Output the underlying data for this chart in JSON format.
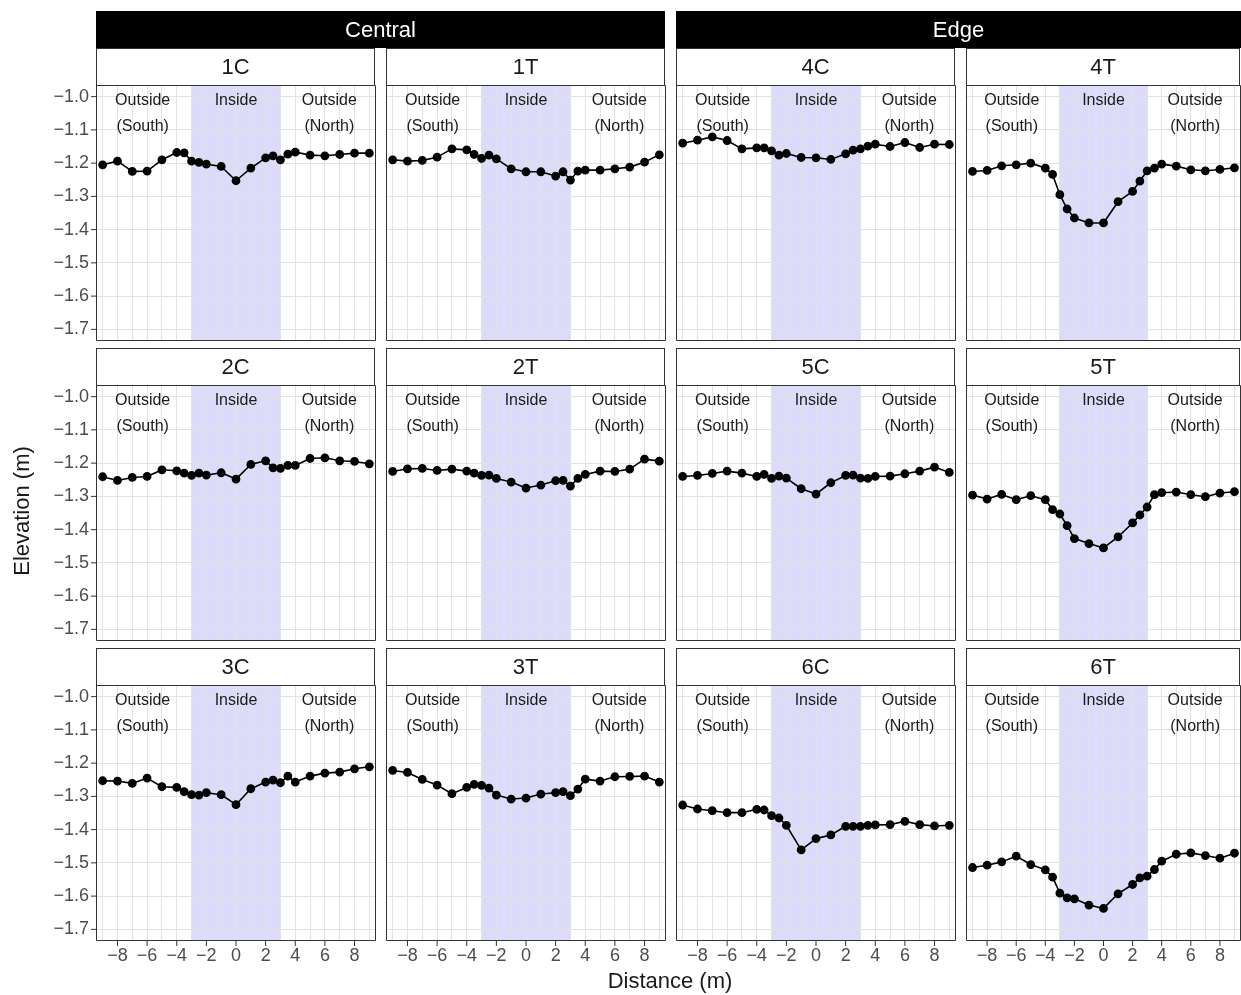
{
  "chart_data": [
    {
      "type": "other",
      "title": "Central"
    },
    {
      "type": "other",
      "title": "Edge"
    },
    {
      "type": "line",
      "title": "1C",
      "tick_labels": "y",
      "grid": true,
      "marker": "circle",
      "x": [
        -9,
        -8,
        -7,
        -6,
        -5,
        -4,
        -3.5,
        -3,
        -2.5,
        -2,
        -1,
        0,
        1,
        2,
        2.5,
        3,
        3.5,
        4,
        5,
        6,
        7,
        8,
        9
      ],
      "xlim": [
        -9.45,
        9.45
      ],
      "ylim": [
        -1.735,
        -0.965
      ],
      "xticks": [
        {
          "value": -9,
          "label": null
        },
        {
          "value": -8,
          "label": null
        },
        {
          "value": -7,
          "label": null
        },
        {
          "value": -6,
          "label": null
        },
        {
          "value": -5,
          "label": null
        },
        {
          "value": -4,
          "label": null
        },
        {
          "value": -3,
          "label": null
        },
        {
          "value": -2,
          "label": null
        },
        {
          "value": -1,
          "label": null
        },
        {
          "value": 0,
          "label": null
        },
        {
          "value": 1,
          "label": null
        },
        {
          "value": 2,
          "label": null
        },
        {
          "value": 3,
          "label": null
        },
        {
          "value": 4,
          "label": null
        },
        {
          "value": 5,
          "label": null
        },
        {
          "value": 6,
          "label": null
        },
        {
          "value": 7,
          "label": null
        },
        {
          "value": 8,
          "label": null
        },
        {
          "value": 9,
          "label": null
        }
      ],
      "yticks": [
        {
          "value": -1.0,
          "label": "−1.0"
        },
        {
          "value": -1.1,
          "label": "−1.1"
        },
        {
          "value": -1.2,
          "label": "−1.2"
        },
        {
          "value": -1.3,
          "label": "−1.3"
        },
        {
          "value": -1.4,
          "label": "−1.4"
        },
        {
          "value": -1.5,
          "label": "−1.5"
        },
        {
          "value": -1.6,
          "label": "−1.6"
        },
        {
          "value": -1.7,
          "label": "−1.7"
        }
      ],
      "bands": [
        {
          "axis": "x",
          "from": -3,
          "to": 3,
          "color": "#dcdcfa"
        }
      ],
      "annotations": [
        "Outside\n(South)",
        "Inside",
        "Outside\n(North)"
      ],
      "series": [
        {
          "color": "#000000",
          "values": [
            -1.205,
            -1.194,
            -1.225,
            -1.224,
            -1.19,
            -1.168,
            -1.169,
            -1.194,
            -1.198,
            -1.203,
            -1.21,
            -1.253,
            -1.215,
            -1.184,
            -1.178,
            -1.19,
            -1.173,
            -1.167,
            -1.176,
            -1.178,
            -1.174,
            -1.17,
            -1.17
          ]
        }
      ]
    },
    {
      "type": "line",
      "title": "1T",
      "tick_labels": false,
      "grid": true,
      "marker": "circle",
      "x": [
        -9,
        -8,
        -7,
        -6,
        -5,
        -4,
        -3.5,
        -3,
        -2.5,
        -2,
        -1,
        0,
        1,
        2,
        2.5,
        3,
        3.5,
        4,
        5,
        6,
        7,
        8,
        9
      ],
      "xlim": [
        -9.45,
        9.45
      ],
      "ylim": [
        -1.735,
        -0.965
      ],
      "xticks": [
        {
          "value": -9,
          "label": null
        },
        {
          "value": -8,
          "label": null
        },
        {
          "value": -7,
          "label": null
        },
        {
          "value": -6,
          "label": null
        },
        {
          "value": -5,
          "label": null
        },
        {
          "value": -4,
          "label": null
        },
        {
          "value": -3,
          "label": null
        },
        {
          "value": -2,
          "label": null
        },
        {
          "value": -1,
          "label": null
        },
        {
          "value": 0,
          "label": null
        },
        {
          "value": 1,
          "label": null
        },
        {
          "value": 2,
          "label": null
        },
        {
          "value": 3,
          "label": null
        },
        {
          "value": 4,
          "label": null
        },
        {
          "value": 5,
          "label": null
        },
        {
          "value": 6,
          "label": null
        },
        {
          "value": 7,
          "label": null
        },
        {
          "value": 8,
          "label": null
        },
        {
          "value": 9,
          "label": null
        }
      ],
      "yticks": [
        {
          "value": -1.0,
          "label": null
        },
        {
          "value": -1.1,
          "label": null
        },
        {
          "value": -1.2,
          "label": null
        },
        {
          "value": -1.3,
          "label": null
        },
        {
          "value": -1.4,
          "label": null
        },
        {
          "value": -1.5,
          "label": null
        },
        {
          "value": -1.6,
          "label": null
        },
        {
          "value": -1.7,
          "label": null
        }
      ],
      "bands": [
        {
          "axis": "x",
          "from": -3,
          "to": 3,
          "color": "#dcdcfa"
        }
      ],
      "annotations": [
        "Outside\n(South)",
        "Inside",
        "Outside\n(North)"
      ],
      "series": [
        {
          "color": "#000000",
          "values": [
            -1.19,
            -1.194,
            -1.192,
            -1.182,
            -1.157,
            -1.16,
            -1.174,
            -1.186,
            -1.176,
            -1.187,
            -1.217,
            -1.226,
            -1.226,
            -1.239,
            -1.226,
            -1.251,
            -1.224,
            -1.221,
            -1.221,
            -1.217,
            -1.212,
            -1.197,
            -1.175
          ]
        }
      ]
    },
    {
      "type": "line",
      "title": "4C",
      "tick_labels": false,
      "grid": true,
      "marker": "circle",
      "x": [
        -9,
        -8,
        -7,
        -6,
        -5,
        -4,
        -3.5,
        -3,
        -2.5,
        -2,
        -1,
        0,
        1,
        2,
        2.5,
        3,
        3.5,
        4,
        5,
        6,
        7,
        8,
        9
      ],
      "xlim": [
        -9.45,
        9.45
      ],
      "ylim": [
        -1.735,
        -0.965
      ],
      "xticks": [
        {
          "value": -9,
          "label": null
        },
        {
          "value": -8,
          "label": null
        },
        {
          "value": -7,
          "label": null
        },
        {
          "value": -6,
          "label": null
        },
        {
          "value": -5,
          "label": null
        },
        {
          "value": -4,
          "label": null
        },
        {
          "value": -3,
          "label": null
        },
        {
          "value": -2,
          "label": null
        },
        {
          "value": -1,
          "label": null
        },
        {
          "value": 0,
          "label": null
        },
        {
          "value": 1,
          "label": null
        },
        {
          "value": 2,
          "label": null
        },
        {
          "value": 3,
          "label": null
        },
        {
          "value": 4,
          "label": null
        },
        {
          "value": 5,
          "label": null
        },
        {
          "value": 6,
          "label": null
        },
        {
          "value": 7,
          "label": null
        },
        {
          "value": 8,
          "label": null
        },
        {
          "value": 9,
          "label": null
        }
      ],
      "yticks": [
        {
          "value": -1.0,
          "label": null
        },
        {
          "value": -1.1,
          "label": null
        },
        {
          "value": -1.2,
          "label": null
        },
        {
          "value": -1.3,
          "label": null
        },
        {
          "value": -1.4,
          "label": null
        },
        {
          "value": -1.5,
          "label": null
        },
        {
          "value": -1.6,
          "label": null
        },
        {
          "value": -1.7,
          "label": null
        }
      ],
      "bands": [
        {
          "axis": "x",
          "from": -3,
          "to": 3,
          "color": "#dcdcfa"
        }
      ],
      "annotations": [
        "Outside\n(South)",
        "Inside",
        "Outside\n(North)"
      ],
      "series": [
        {
          "color": "#000000",
          "values": [
            -1.14,
            -1.131,
            -1.121,
            -1.132,
            -1.157,
            -1.154,
            -1.154,
            -1.163,
            -1.176,
            -1.171,
            -1.183,
            -1.184,
            -1.189,
            -1.172,
            -1.161,
            -1.157,
            -1.149,
            -1.143,
            -1.15,
            -1.138,
            -1.153,
            -1.143,
            -1.144
          ]
        }
      ]
    },
    {
      "type": "line",
      "title": "4T",
      "tick_labels": false,
      "grid": true,
      "marker": "circle",
      "x": [
        -9,
        -8,
        -7,
        -6,
        -5,
        -4,
        -3.5,
        -3,
        -2.5,
        -2,
        -1,
        0,
        1,
        2,
        2.5,
        3,
        3.5,
        4,
        5,
        6,
        7,
        8,
        9
      ],
      "xlim": [
        -9.45,
        9.45
      ],
      "ylim": [
        -1.735,
        -0.965
      ],
      "xticks": [
        {
          "value": -9,
          "label": null
        },
        {
          "value": -8,
          "label": null
        },
        {
          "value": -7,
          "label": null
        },
        {
          "value": -6,
          "label": null
        },
        {
          "value": -5,
          "label": null
        },
        {
          "value": -4,
          "label": null
        },
        {
          "value": -3,
          "label": null
        },
        {
          "value": -2,
          "label": null
        },
        {
          "value": -1,
          "label": null
        },
        {
          "value": 0,
          "label": null
        },
        {
          "value": 1,
          "label": null
        },
        {
          "value": 2,
          "label": null
        },
        {
          "value": 3,
          "label": null
        },
        {
          "value": 4,
          "label": null
        },
        {
          "value": 5,
          "label": null
        },
        {
          "value": 6,
          "label": null
        },
        {
          "value": 7,
          "label": null
        },
        {
          "value": 8,
          "label": null
        },
        {
          "value": 9,
          "label": null
        }
      ],
      "yticks": [
        {
          "value": -1.0,
          "label": null
        },
        {
          "value": -1.1,
          "label": null
        },
        {
          "value": -1.2,
          "label": null
        },
        {
          "value": -1.3,
          "label": null
        },
        {
          "value": -1.4,
          "label": null
        },
        {
          "value": -1.5,
          "label": null
        },
        {
          "value": -1.6,
          "label": null
        },
        {
          "value": -1.7,
          "label": null
        }
      ],
      "bands": [
        {
          "axis": "x",
          "from": -3,
          "to": 3,
          "color": "#dcdcfa"
        }
      ],
      "annotations": [
        "Outside\n(South)",
        "Inside",
        "Outside\n(North)"
      ],
      "series": [
        {
          "color": "#000000",
          "values": [
            -1.225,
            -1.222,
            -1.208,
            -1.205,
            -1.2,
            -1.215,
            -1.234,
            -1.295,
            -1.338,
            -1.365,
            -1.38,
            -1.38,
            -1.316,
            -1.285,
            -1.254,
            -1.223,
            -1.215,
            -1.203,
            -1.209,
            -1.22,
            -1.223,
            -1.219,
            -1.214
          ]
        }
      ]
    },
    {
      "type": "line",
      "title": "2C",
      "ylabel": "Elevation (m)",
      "tick_labels": "y",
      "grid": true,
      "marker": "circle",
      "x": [
        -9,
        -8,
        -7,
        -6,
        -5,
        -4,
        -3.5,
        -3,
        -2.5,
        -2,
        -1,
        0,
        1,
        2,
        2.5,
        3,
        3.5,
        4,
        5,
        6,
        7,
        8,
        9
      ],
      "xlim": [
        -9.45,
        9.45
      ],
      "ylim": [
        -1.735,
        -0.965
      ],
      "xticks": [
        {
          "value": -9,
          "label": null
        },
        {
          "value": -8,
          "label": null
        },
        {
          "value": -7,
          "label": null
        },
        {
          "value": -6,
          "label": null
        },
        {
          "value": -5,
          "label": null
        },
        {
          "value": -4,
          "label": null
        },
        {
          "value": -3,
          "label": null
        },
        {
          "value": -2,
          "label": null
        },
        {
          "value": -1,
          "label": null
        },
        {
          "value": 0,
          "label": null
        },
        {
          "value": 1,
          "label": null
        },
        {
          "value": 2,
          "label": null
        },
        {
          "value": 3,
          "label": null
        },
        {
          "value": 4,
          "label": null
        },
        {
          "value": 5,
          "label": null
        },
        {
          "value": 6,
          "label": null
        },
        {
          "value": 7,
          "label": null
        },
        {
          "value": 8,
          "label": null
        },
        {
          "value": 9,
          "label": null
        }
      ],
      "yticks": [
        {
          "value": -1.0,
          "label": "−1.0"
        },
        {
          "value": -1.1,
          "label": "−1.1"
        },
        {
          "value": -1.2,
          "label": "−1.2"
        },
        {
          "value": -1.3,
          "label": "−1.3"
        },
        {
          "value": -1.4,
          "label": "−1.4"
        },
        {
          "value": -1.5,
          "label": "−1.5"
        },
        {
          "value": -1.6,
          "label": "−1.6"
        },
        {
          "value": -1.7,
          "label": "−1.7"
        }
      ],
      "bands": [
        {
          "axis": "x",
          "from": -3,
          "to": 3,
          "color": "#dcdcfa"
        }
      ],
      "annotations": [
        "Outside\n(South)",
        "Inside",
        "Outside\n(North)"
      ],
      "series": [
        {
          "color": "#000000",
          "values": [
            -1.241,
            -1.252,
            -1.243,
            -1.24,
            -1.22,
            -1.223,
            -1.23,
            -1.237,
            -1.23,
            -1.236,
            -1.229,
            -1.248,
            -1.204,
            -1.193,
            -1.214,
            -1.216,
            -1.207,
            -1.207,
            -1.186,
            -1.184,
            -1.193,
            -1.195,
            -1.202
          ]
        }
      ]
    },
    {
      "type": "line",
      "title": "2T",
      "tick_labels": false,
      "grid": true,
      "marker": "circle",
      "x": [
        -9,
        -8,
        -7,
        -6,
        -5,
        -4,
        -3.5,
        -3,
        -2.5,
        -2,
        -1,
        0,
        1,
        2,
        2.5,
        3,
        3.5,
        4,
        5,
        6,
        7,
        8,
        9
      ],
      "xlim": [
        -9.45,
        9.45
      ],
      "ylim": [
        -1.735,
        -0.965
      ],
      "xticks": [
        {
          "value": -9,
          "label": null
        },
        {
          "value": -8,
          "label": null
        },
        {
          "value": -7,
          "label": null
        },
        {
          "value": -6,
          "label": null
        },
        {
          "value": -5,
          "label": null
        },
        {
          "value": -4,
          "label": null
        },
        {
          "value": -3,
          "label": null
        },
        {
          "value": -2,
          "label": null
        },
        {
          "value": -1,
          "label": null
        },
        {
          "value": 0,
          "label": null
        },
        {
          "value": 1,
          "label": null
        },
        {
          "value": 2,
          "label": null
        },
        {
          "value": 3,
          "label": null
        },
        {
          "value": 4,
          "label": null
        },
        {
          "value": 5,
          "label": null
        },
        {
          "value": 6,
          "label": null
        },
        {
          "value": 7,
          "label": null
        },
        {
          "value": 8,
          "label": null
        },
        {
          "value": 9,
          "label": null
        }
      ],
      "yticks": [
        {
          "value": -1.0,
          "label": null
        },
        {
          "value": -1.1,
          "label": null
        },
        {
          "value": -1.2,
          "label": null
        },
        {
          "value": -1.3,
          "label": null
        },
        {
          "value": -1.4,
          "label": null
        },
        {
          "value": -1.5,
          "label": null
        },
        {
          "value": -1.6,
          "label": null
        },
        {
          "value": -1.7,
          "label": null
        }
      ],
      "bands": [
        {
          "axis": "x",
          "from": -3,
          "to": 3,
          "color": "#dcdcfa"
        }
      ],
      "annotations": [
        "Outside\n(South)",
        "Inside",
        "Outside\n(North)"
      ],
      "series": [
        {
          "color": "#000000",
          "values": [
            -1.225,
            -1.217,
            -1.216,
            -1.222,
            -1.218,
            -1.224,
            -1.23,
            -1.237,
            -1.236,
            -1.246,
            -1.257,
            -1.275,
            -1.266,
            -1.253,
            -1.252,
            -1.269,
            -1.246,
            -1.234,
            -1.224,
            -1.225,
            -1.218,
            -1.188,
            -1.194
          ]
        }
      ]
    },
    {
      "type": "line",
      "title": "5C",
      "tick_labels": false,
      "grid": true,
      "marker": "circle",
      "x": [
        -9,
        -8,
        -7,
        -6,
        -5,
        -4,
        -3.5,
        -3,
        -2.5,
        -2,
        -1,
        0,
        1,
        2,
        2.5,
        3,
        3.5,
        4,
        5,
        6,
        7,
        8,
        9
      ],
      "xlim": [
        -9.45,
        9.45
      ],
      "ylim": [
        -1.735,
        -0.965
      ],
      "xticks": [
        {
          "value": -9,
          "label": null
        },
        {
          "value": -8,
          "label": null
        },
        {
          "value": -7,
          "label": null
        },
        {
          "value": -6,
          "label": null
        },
        {
          "value": -5,
          "label": null
        },
        {
          "value": -4,
          "label": null
        },
        {
          "value": -3,
          "label": null
        },
        {
          "value": -2,
          "label": null
        },
        {
          "value": -1,
          "label": null
        },
        {
          "value": 0,
          "label": null
        },
        {
          "value": 1,
          "label": null
        },
        {
          "value": 2,
          "label": null
        },
        {
          "value": 3,
          "label": null
        },
        {
          "value": 4,
          "label": null
        },
        {
          "value": 5,
          "label": null
        },
        {
          "value": 6,
          "label": null
        },
        {
          "value": 7,
          "label": null
        },
        {
          "value": 8,
          "label": null
        },
        {
          "value": 9,
          "label": null
        }
      ],
      "yticks": [
        {
          "value": -1.0,
          "label": null
        },
        {
          "value": -1.1,
          "label": null
        },
        {
          "value": -1.2,
          "label": null
        },
        {
          "value": -1.3,
          "label": null
        },
        {
          "value": -1.4,
          "label": null
        },
        {
          "value": -1.5,
          "label": null
        },
        {
          "value": -1.6,
          "label": null
        },
        {
          "value": -1.7,
          "label": null
        }
      ],
      "bands": [
        {
          "axis": "x",
          "from": -3,
          "to": 3,
          "color": "#dcdcfa"
        }
      ],
      "annotations": [
        "Outside\n(South)",
        "Inside",
        "Outside\n(North)"
      ],
      "series": [
        {
          "color": "#000000",
          "values": [
            -1.24,
            -1.237,
            -1.231,
            -1.224,
            -1.23,
            -1.24,
            -1.234,
            -1.246,
            -1.239,
            -1.245,
            -1.277,
            -1.293,
            -1.259,
            -1.237,
            -1.236,
            -1.245,
            -1.246,
            -1.24,
            -1.239,
            -1.232,
            -1.224,
            -1.212,
            -1.228
          ]
        }
      ]
    },
    {
      "type": "line",
      "title": "5T",
      "tick_labels": false,
      "grid": true,
      "marker": "circle",
      "x": [
        -9,
        -8,
        -7,
        -6,
        -5,
        -4,
        -3.5,
        -3,
        -2.5,
        -2,
        -1,
        0,
        1,
        2,
        2.5,
        3,
        3.5,
        4,
        5,
        6,
        7,
        8,
        9
      ],
      "xlim": [
        -9.45,
        9.45
      ],
      "ylim": [
        -1.735,
        -0.965
      ],
      "xticks": [
        {
          "value": -9,
          "label": null
        },
        {
          "value": -8,
          "label": null
        },
        {
          "value": -7,
          "label": null
        },
        {
          "value": -6,
          "label": null
        },
        {
          "value": -5,
          "label": null
        },
        {
          "value": -4,
          "label": null
        },
        {
          "value": -3,
          "label": null
        },
        {
          "value": -2,
          "label": null
        },
        {
          "value": -1,
          "label": null
        },
        {
          "value": 0,
          "label": null
        },
        {
          "value": 1,
          "label": null
        },
        {
          "value": 2,
          "label": null
        },
        {
          "value": 3,
          "label": null
        },
        {
          "value": 4,
          "label": null
        },
        {
          "value": 5,
          "label": null
        },
        {
          "value": 6,
          "label": null
        },
        {
          "value": 7,
          "label": null
        },
        {
          "value": 8,
          "label": null
        },
        {
          "value": 9,
          "label": null
        }
      ],
      "yticks": [
        {
          "value": -1.0,
          "label": null
        },
        {
          "value": -1.1,
          "label": null
        },
        {
          "value": -1.2,
          "label": null
        },
        {
          "value": -1.3,
          "label": null
        },
        {
          "value": -1.4,
          "label": null
        },
        {
          "value": -1.5,
          "label": null
        },
        {
          "value": -1.6,
          "label": null
        },
        {
          "value": -1.7,
          "label": null
        }
      ],
      "bands": [
        {
          "axis": "x",
          "from": -3,
          "to": 3,
          "color": "#dcdcfa"
        }
      ],
      "annotations": [
        "Outside\n(South)",
        "Inside",
        "Outside\n(North)"
      ],
      "series": [
        {
          "color": "#000000",
          "values": [
            -1.296,
            -1.308,
            -1.294,
            -1.31,
            -1.298,
            -1.31,
            -1.34,
            -1.353,
            -1.388,
            -1.427,
            -1.442,
            -1.455,
            -1.422,
            -1.38,
            -1.356,
            -1.332,
            -1.295,
            -1.289,
            -1.287,
            -1.295,
            -1.301,
            -1.29,
            -1.286
          ]
        }
      ]
    },
    {
      "type": "line",
      "title": "3C",
      "grid": true,
      "marker": "circle",
      "x": [
        -9,
        -8,
        -7,
        -6,
        -5,
        -4,
        -3.5,
        -3,
        -2.5,
        -2,
        -1,
        0,
        1,
        2,
        2.5,
        3,
        3.5,
        4,
        5,
        6,
        7,
        8,
        9
      ],
      "xlim": [
        -9.45,
        9.45
      ],
      "ylim": [
        -1.735,
        -0.965
      ],
      "xticks": [
        {
          "value": -9,
          "label": null
        },
        {
          "value": -8,
          "label": "−8"
        },
        {
          "value": -7,
          "label": null
        },
        {
          "value": -6,
          "label": "−6"
        },
        {
          "value": -5,
          "label": null
        },
        {
          "value": -4,
          "label": "−4"
        },
        {
          "value": -3,
          "label": null
        },
        {
          "value": -2,
          "label": "−2"
        },
        {
          "value": -1,
          "label": null
        },
        0,
        {
          "value": 1,
          "label": null
        },
        2,
        {
          "value": 3,
          "label": null
        },
        4,
        {
          "value": 5,
          "label": null
        },
        6,
        {
          "value": 7,
          "label": null
        },
        8,
        {
          "value": 9,
          "label": null
        }
      ],
      "yticks": [
        {
          "value": -1.0,
          "label": "−1.0"
        },
        {
          "value": -1.1,
          "label": "−1.1"
        },
        {
          "value": -1.2,
          "label": "−1.2"
        },
        {
          "value": -1.3,
          "label": "−1.3"
        },
        {
          "value": -1.4,
          "label": "−1.4"
        },
        {
          "value": -1.5,
          "label": "−1.5"
        },
        {
          "value": -1.6,
          "label": "−1.6"
        },
        {
          "value": -1.7,
          "label": "−1.7"
        }
      ],
      "bands": [
        {
          "axis": "x",
          "from": -3,
          "to": 3,
          "color": "#dcdcfa"
        }
      ],
      "annotations": [
        "Outside\n(South)",
        "Inside",
        "Outside\n(North)"
      ],
      "series": [
        {
          "color": "#000000",
          "values": [
            -1.253,
            -1.254,
            -1.261,
            -1.245,
            -1.271,
            -1.273,
            -1.286,
            -1.295,
            -1.296,
            -1.289,
            -1.295,
            -1.325,
            -1.277,
            -1.257,
            -1.251,
            -1.259,
            -1.239,
            -1.257,
            -1.239,
            -1.23,
            -1.227,
            -1.217,
            -1.211
          ]
        }
      ]
    },
    {
      "type": "line",
      "title": "3T",
      "xlabel": "Distance (m)",
      "tick_labels": "x",
      "grid": true,
      "marker": "circle",
      "x": [
        -9,
        -8,
        -7,
        -6,
        -5,
        -4,
        -3.5,
        -3,
        -2.5,
        -2,
        -1,
        0,
        1,
        2,
        2.5,
        3,
        3.5,
        4,
        5,
        6,
        7,
        8,
        9
      ],
      "xlim": [
        -9.45,
        9.45
      ],
      "ylim": [
        -1.735,
        -0.965
      ],
      "xticks": [
        {
          "value": -9,
          "label": null
        },
        {
          "value": -8,
          "label": "−8"
        },
        {
          "value": -7,
          "label": null
        },
        {
          "value": -6,
          "label": "−6"
        },
        {
          "value": -5,
          "label": null
        },
        {
          "value": -4,
          "label": "−4"
        },
        {
          "value": -3,
          "label": null
        },
        {
          "value": -2,
          "label": "−2"
        },
        {
          "value": -1,
          "label": null
        },
        0,
        {
          "value": 1,
          "label": null
        },
        2,
        {
          "value": 3,
          "label": null
        },
        4,
        {
          "value": 5,
          "label": null
        },
        6,
        {
          "value": 7,
          "label": null
        },
        8,
        {
          "value": 9,
          "label": null
        }
      ],
      "yticks": [
        {
          "value": -1.0,
          "label": null
        },
        {
          "value": -1.1,
          "label": null
        },
        {
          "value": -1.2,
          "label": null
        },
        {
          "value": -1.3,
          "label": null
        },
        {
          "value": -1.4,
          "label": null
        },
        {
          "value": -1.5,
          "label": null
        },
        {
          "value": -1.6,
          "label": null
        },
        {
          "value": -1.7,
          "label": null
        }
      ],
      "bands": [
        {
          "axis": "x",
          "from": -3,
          "to": 3,
          "color": "#dcdcfa"
        }
      ],
      "annotations": [
        "Outside\n(South)",
        "Inside",
        "Outside\n(North)"
      ],
      "series": [
        {
          "color": "#000000",
          "values": [
            -1.222,
            -1.228,
            -1.249,
            -1.266,
            -1.292,
            -1.273,
            -1.264,
            -1.267,
            -1.275,
            -1.296,
            -1.308,
            -1.305,
            -1.293,
            -1.289,
            -1.286,
            -1.298,
            -1.278,
            -1.248,
            -1.254,
            -1.241,
            -1.24,
            -1.239,
            -1.257
          ]
        }
      ]
    },
    {
      "type": "line",
      "title": "6C",
      "tick_labels": "x",
      "grid": true,
      "marker": "circle",
      "x": [
        -9,
        -8,
        -7,
        -6,
        -5,
        -4,
        -3.5,
        -3,
        -2.5,
        -2,
        -1,
        0,
        1,
        2,
        2.5,
        3,
        3.5,
        4,
        5,
        6,
        7,
        8,
        9
      ],
      "xlim": [
        -9.45,
        9.45
      ],
      "ylim": [
        -1.735,
        -0.965
      ],
      "xticks": [
        {
          "value": -9,
          "label": null
        },
        {
          "value": -8,
          "label": "−8"
        },
        {
          "value": -7,
          "label": null
        },
        {
          "value": -6,
          "label": "−6"
        },
        {
          "value": -5,
          "label": null
        },
        {
          "value": -4,
          "label": "−4"
        },
        {
          "value": -3,
          "label": null
        },
        {
          "value": -2,
          "label": "−2"
        },
        {
          "value": -1,
          "label": null
        },
        0,
        {
          "value": 1,
          "label": null
        },
        2,
        {
          "value": 3,
          "label": null
        },
        4,
        {
          "value": 5,
          "label": null
        },
        6,
        {
          "value": 7,
          "label": null
        },
        8,
        {
          "value": 9,
          "label": null
        }
      ],
      "yticks": [
        {
          "value": -1.0,
          "label": null
        },
        {
          "value": -1.1,
          "label": null
        },
        {
          "value": -1.2,
          "label": null
        },
        {
          "value": -1.3,
          "label": null
        },
        {
          "value": -1.4,
          "label": null
        },
        {
          "value": -1.5,
          "label": null
        },
        {
          "value": -1.6,
          "label": null
        },
        {
          "value": -1.7,
          "label": null
        }
      ],
      "bands": [
        {
          "axis": "x",
          "from": -3,
          "to": 3,
          "color": "#dcdcfa"
        }
      ],
      "annotations": [
        "Outside\n(South)",
        "Inside",
        "Outside\n(North)"
      ],
      "series": [
        {
          "color": "#000000",
          "values": [
            -1.326,
            -1.338,
            -1.343,
            -1.349,
            -1.349,
            -1.339,
            -1.341,
            -1.358,
            -1.365,
            -1.387,
            -1.461,
            -1.427,
            -1.416,
            -1.39,
            -1.39,
            -1.39,
            -1.387,
            -1.386,
            -1.385,
            -1.375,
            -1.385,
            -1.389,
            -1.387
          ]
        }
      ]
    },
    {
      "type": "line",
      "title": "6T",
      "tick_labels": "x",
      "grid": true,
      "marker": "circle",
      "x": [
        -9,
        -8,
        -7,
        -6,
        -5,
        -4,
        -3.5,
        -3,
        -2.5,
        -2,
        -1,
        0,
        1,
        2,
        2.5,
        3,
        3.5,
        4,
        5,
        6,
        7,
        8,
        9
      ],
      "xlim": [
        -9.45,
        9.45
      ],
      "ylim": [
        -1.735,
        -0.965
      ],
      "xticks": [
        {
          "value": -9,
          "label": null
        },
        {
          "value": -8,
          "label": "−8"
        },
        {
          "value": -7,
          "label": null
        },
        {
          "value": -6,
          "label": "−6"
        },
        {
          "value": -5,
          "label": null
        },
        {
          "value": -4,
          "label": "−4"
        },
        {
          "value": -3,
          "label": null
        },
        {
          "value": -2,
          "label": "−2"
        },
        {
          "value": -1,
          "label": null
        },
        0,
        {
          "value": 1,
          "label": null
        },
        2,
        {
          "value": 3,
          "label": null
        },
        4,
        {
          "value": 5,
          "label": null
        },
        6,
        {
          "value": 7,
          "label": null
        },
        8,
        {
          "value": 9,
          "label": null
        }
      ],
      "yticks": [
        {
          "value": -1.0,
          "label": null
        },
        {
          "value": -1.1,
          "label": null
        },
        {
          "value": -1.2,
          "label": null
        },
        {
          "value": -1.3,
          "label": null
        },
        {
          "value": -1.4,
          "label": null
        },
        {
          "value": -1.5,
          "label": null
        },
        {
          "value": -1.6,
          "label": null
        },
        {
          "value": -1.7,
          "label": null
        }
      ],
      "bands": [
        {
          "axis": "x",
          "from": -3,
          "to": 3,
          "color": "#dcdcfa"
        }
      ],
      "annotations": [
        "Outside\n(South)",
        "Inside",
        "Outside\n(North)"
      ],
      "series": [
        {
          "color": "#000000",
          "values": [
            -1.514,
            -1.507,
            -1.497,
            -1.48,
            -1.505,
            -1.521,
            -1.543,
            -1.591,
            -1.605,
            -1.608,
            -1.627,
            -1.637,
            -1.593,
            -1.565,
            -1.545,
            -1.54,
            -1.52,
            -1.495,
            -1.474,
            -1.47,
            -1.478,
            -1.486,
            -1.471
          ]
        }
      ]
    }
  ]
}
